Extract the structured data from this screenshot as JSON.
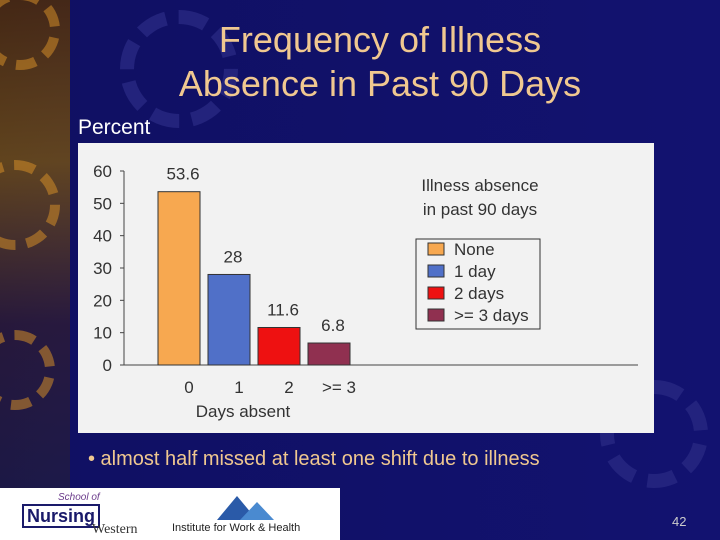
{
  "slide": {
    "title_line1": "Frequency of Illness",
    "title_line2": "Absence in Past 90 Days",
    "percent_label": "Percent",
    "bullet": "• almost half missed at least one shift due to illness",
    "page_number": "42"
  },
  "footer": {
    "school_of": "School of",
    "nursing": "Nursing",
    "western": "Western",
    "iwh": "Institute for Work & Health"
  },
  "colors": {
    "background": "#121270",
    "title": "#f0c890",
    "bar_none": "#f7a850",
    "bar_1day": "#5070c8",
    "bar_2days": "#ee1111",
    "bar_3days": "#903050"
  },
  "chart_data": {
    "type": "bar",
    "categories": [
      "0",
      "1",
      "2",
      ">= 3"
    ],
    "values": [
      53.6,
      28,
      11.6,
      6.8
    ],
    "data_labels": [
      "53.6",
      "28",
      "11.6",
      "6.8"
    ],
    "xlabel": "Days absent",
    "ylim": [
      0,
      60
    ],
    "y_ticks": [
      "0",
      "10",
      "20",
      "30",
      "40",
      "50",
      "60"
    ],
    "grid": false,
    "legend": {
      "title_line1": "Illness absence",
      "title_line2": "in past 90 days",
      "position": "top-right",
      "entries": [
        "None",
        "1 day",
        "2 days",
        ">= 3 days"
      ]
    }
  }
}
